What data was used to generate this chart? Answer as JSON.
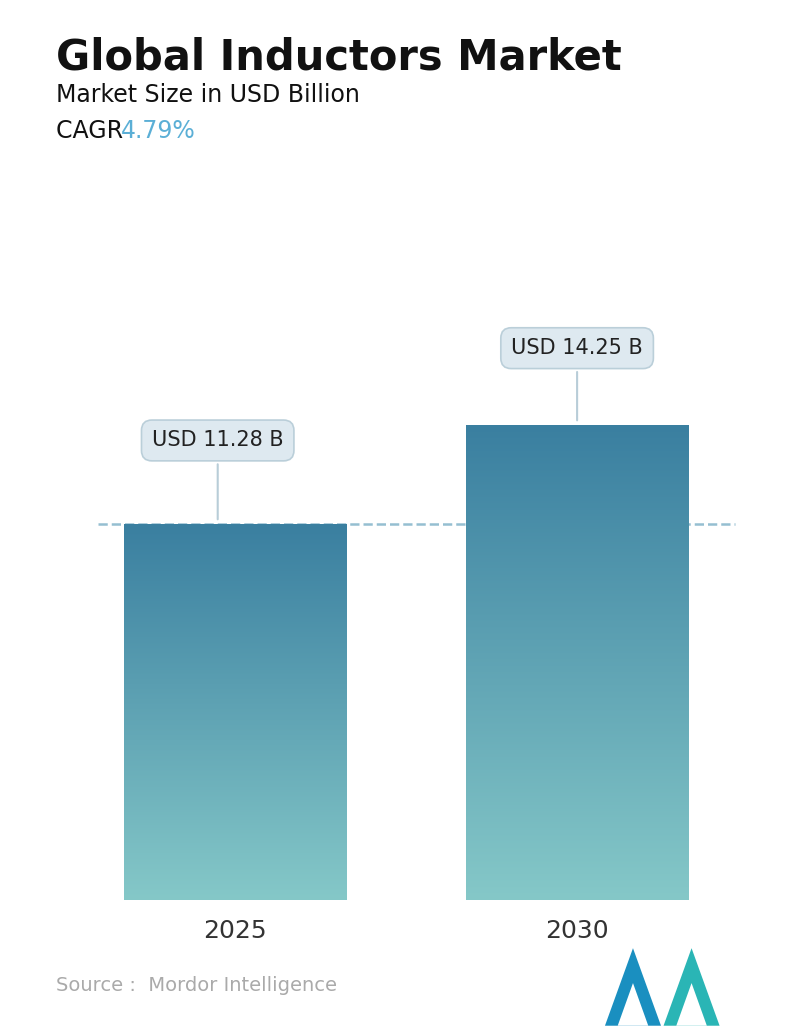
{
  "title": "Global Inductors Market",
  "subtitle": "Market Size in USD Billion",
  "cagr_label": "CAGR ",
  "cagr_value": "4.79%",
  "cagr_color": "#5bafd6",
  "categories": [
    "2025",
    "2030"
  ],
  "values": [
    11.28,
    14.25
  ],
  "bar_labels": [
    "USD 11.28 B",
    "USD 14.25 B"
  ],
  "bar_top_color": "#3a7fa0",
  "bar_bottom_color": "#85c8c8",
  "dashed_line_color": "#8ab8cc",
  "dashed_line_value": 11.28,
  "source_text": "Source :  Mordor Intelligence",
  "source_color": "#aaaaaa",
  "background_color": "#ffffff",
  "title_fontsize": 30,
  "subtitle_fontsize": 17,
  "cagr_fontsize": 17,
  "tick_fontsize": 18,
  "label_fontsize": 15,
  "source_fontsize": 14,
  "ylim": [
    0,
    18
  ],
  "bar_positions": [
    1.0,
    3.0
  ],
  "bar_width": 1.3
}
